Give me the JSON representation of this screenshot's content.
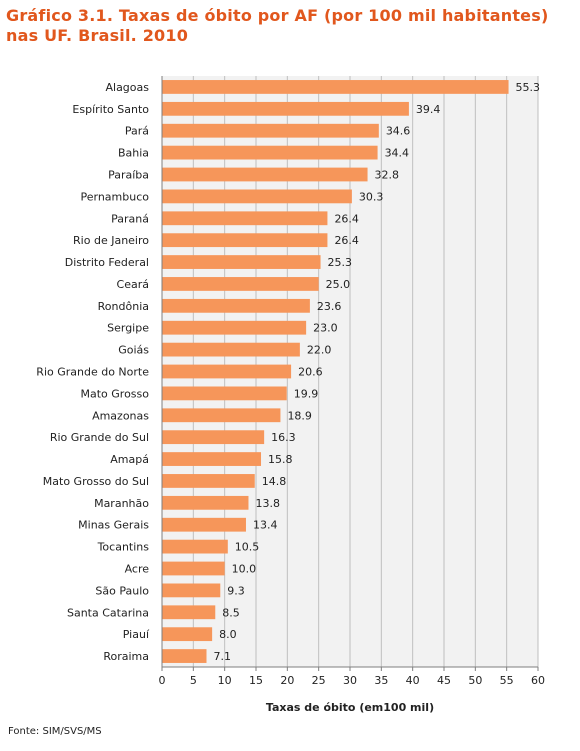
{
  "title": "Gráfico 3.1. Taxas de óbito por AF (por 100 mil habitantes) nas UF. Brasil. 2010",
  "source": "Fonte: SIM/SVS/MS",
  "colors": {
    "title": "#e1571d",
    "bar": "#f6965a",
    "plot_bg": "#f2f2f2",
    "grid": "#bfbfbf"
  },
  "chart_data": {
    "type": "bar",
    "orientation": "horizontal",
    "title": "Gráfico 3.1. Taxas de óbito por AF (por 100 mil habitantes) nas UF. Brasil. 2010",
    "xlabel": "Taxas de óbito (em100 mil)",
    "ylabel": "",
    "xlim": [
      0,
      60
    ],
    "xticks": [
      0,
      5,
      10,
      15,
      20,
      25,
      30,
      35,
      40,
      45,
      50,
      55,
      60
    ],
    "grid": true,
    "categories": [
      "Alagoas",
      "Espírito Santo",
      "Pará",
      "Bahia",
      "Paraíba",
      "Pernambuco",
      "Paraná",
      "Rio de Janeiro",
      "Distrito Federal",
      "Ceará",
      "Rondônia",
      "Sergipe",
      "Goiás",
      "Rio Grande do Norte",
      "Mato Grosso",
      "Amazonas",
      "Rio Grande do Sul",
      "Amapá",
      "Mato Grosso do Sul",
      "Maranhão",
      "Minas Gerais",
      "Tocantins",
      "Acre",
      "São Paulo",
      "Santa Catarina",
      "Piauí",
      "Roraima"
    ],
    "values": [
      55.3,
      39.4,
      34.6,
      34.4,
      32.8,
      30.3,
      26.4,
      26.4,
      25.3,
      25.0,
      23.6,
      23.0,
      22.0,
      20.6,
      19.9,
      18.9,
      16.3,
      15.8,
      14.8,
      13.8,
      13.4,
      10.5,
      10.0,
      9.3,
      8.5,
      8.0,
      7.1
    ],
    "value_labels": [
      "55.3",
      "39.4",
      "34.6",
      "34.4",
      "32.8",
      "30.3",
      "26.4",
      "26.4",
      "25.3",
      "25.0",
      "23.6",
      "23.0",
      "22.0",
      "20.6",
      "19.9",
      "18.9",
      "16.3",
      "15.8",
      "14.8",
      "13.8",
      "13.4",
      "10.5",
      "10.0",
      "9.3",
      "8.5",
      "8.0",
      "7.1"
    ]
  }
}
